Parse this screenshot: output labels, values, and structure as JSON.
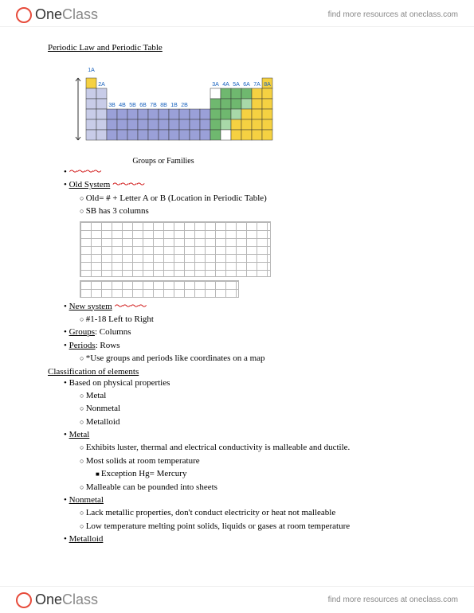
{
  "header": {
    "logo_one": "One",
    "logo_class": "Class",
    "link_text": "find more resources at oneclass.com"
  },
  "title": "Periodic Law and Periodic Table",
  "pt_diagram": {
    "caption": "Groups or Families",
    "top_labels": [
      "1A",
      "2A",
      "3A",
      "4A",
      "5A",
      "6A",
      "7A",
      "8A"
    ],
    "mid_labels": [
      "3B",
      "4B",
      "5B",
      "6B",
      "7B",
      "8B",
      "1B",
      "2B"
    ],
    "colors": {
      "yellow": "#f5d142",
      "lightblue": "#c8cce8",
      "blue": "#9aa0d8",
      "green": "#6fb86f",
      "lightgreen": "#a8d8a8",
      "white": "#ffffff",
      "border": "#333333",
      "arrow": "#333333"
    },
    "cell_size": 13
  },
  "notes": {
    "old_system": "Old System",
    "old_sub1": "Old= # + Letter A or B (Location in Periodic Table)",
    "old_sub2": "SB has 3 columns",
    "new_system": "New system",
    "new_sub1": "#1-18 Left to Right",
    "groups_label": "Groups",
    "groups_text": ": Columns",
    "periods_label": "Periods",
    "periods_text": ": Rows",
    "periods_sub1": "*Use groups and periods like coordinates on a map",
    "classification": "Classification of elements",
    "class_sub1": "Based on physical properties",
    "class_sub1_a": "Metal",
    "class_sub1_b": "Nonmetal",
    "class_sub1_c": "Metalloid",
    "metal": "Metal",
    "metal_sub1": "Exhibits luster, thermal and electrical conductivity is malleable and ductile.",
    "metal_sub2": "Most solids at room temperature",
    "metal_sub2_a": "Exception Hg= Mercury",
    "metal_sub3": "Malleable can be pounded into sheets",
    "nonmetal": "Nonmetal",
    "nonmetal_sub1": "Lack metallic properties, don't conduct electricity or heat not malleable",
    "nonmetal_sub2": "Low temperature melting point solids, liquids or gases at room temperature",
    "metalloid": "Metalloid",
    "squiggle": "～～～～"
  }
}
